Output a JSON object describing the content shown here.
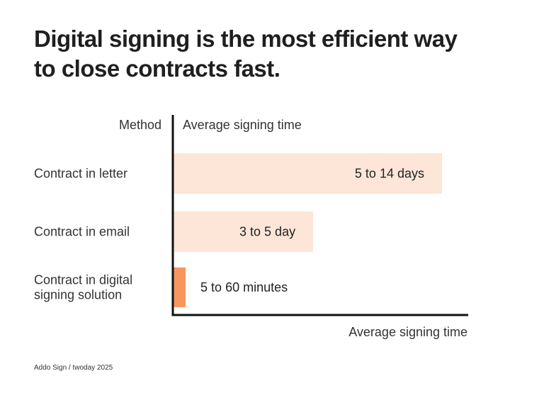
{
  "title": "Digital signing is the most efficient way to close contracts fast.",
  "source": "Addo Sign / twoday 2025",
  "chart_data": {
    "type": "bar",
    "orientation": "horizontal",
    "category_header": "Method",
    "value_header": "Average signing time",
    "xlabel": "Average signing time",
    "categories": [
      [
        "Contract in letter"
      ],
      [
        "Contract in email"
      ],
      [
        "Contract in digital",
        "signing solution"
      ]
    ],
    "data_labels": [
      "5 to 14 days",
      "3 to 5 day",
      "5 to 60 minutes"
    ],
    "values_minutes": [
      13680,
      5760,
      33
    ],
    "bar_fraction": [
      1.0,
      0.52,
      0.045
    ],
    "bar_colors": [
      "#fde6d8",
      "#fde6d8",
      "#f7965f"
    ],
    "grid": false,
    "legend": "none"
  }
}
